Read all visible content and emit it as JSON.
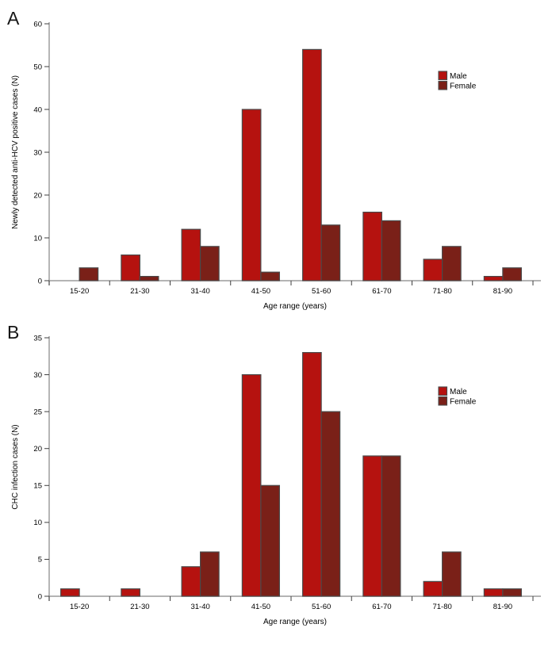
{
  "figure": {
    "panels": [
      {
        "label": "A"
      },
      {
        "label": "B"
      }
    ]
  },
  "colors": {
    "male": "#b5120f",
    "female": "#7a2018",
    "bar_outline": "#4a4a4a",
    "x_axis": "#9c9c9c",
    "y_axis": "#8f8f8f",
    "tick": "#3f3f3f",
    "text": "#000000"
  },
  "chart_data": [
    {
      "type": "bar",
      "panel": "A",
      "title": "",
      "categories": [
        "15-20",
        "21-30",
        "31-40",
        "41-50",
        "51-60",
        "61-70",
        "71-80",
        "81-90"
      ],
      "series": [
        {
          "name": "Male",
          "color": "#b5120f",
          "values": [
            0,
            6,
            12,
            40,
            54,
            16,
            5,
            1
          ]
        },
        {
          "name": "Female",
          "color": "#7a2018",
          "values": [
            3,
            1,
            8,
            2,
            13,
            14,
            8,
            3
          ]
        }
      ],
      "xlabel": "Age range (years)",
      "ylabel": "Newly detected anti-HCV positive cases (N)",
      "ylim": [
        0,
        60
      ],
      "ytick_step": 10,
      "grid": false,
      "legend_position": "upper right"
    },
    {
      "type": "bar",
      "panel": "B",
      "title": "",
      "categories": [
        "15-20",
        "21-30",
        "31-40",
        "41-50",
        "51-60",
        "61-70",
        "71-80",
        "81-90"
      ],
      "series": [
        {
          "name": "Male",
          "color": "#b5120f",
          "values": [
            1,
            1,
            4,
            30,
            33,
            19,
            2,
            1
          ]
        },
        {
          "name": "Female",
          "color": "#7a2018",
          "values": [
            0,
            0,
            6,
            15,
            25,
            19,
            6,
            1
          ]
        }
      ],
      "xlabel": "Age range (years)",
      "ylabel": "CHC infection cases (N)",
      "ylim": [
        0,
        35
      ],
      "ytick_step": 5,
      "grid": false,
      "legend_position": "upper right"
    }
  ]
}
